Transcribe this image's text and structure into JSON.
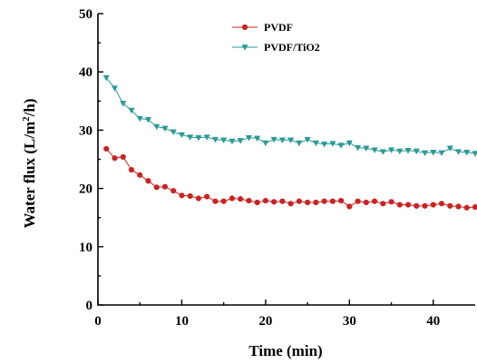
{
  "chart_data": {
    "type": "line",
    "title": "",
    "xlabel": "Time (min)",
    "ylabel_main": "Water flux (L/m",
    "ylabel_sup": "2",
    "ylabel_tail": "/h)",
    "xlim": [
      0,
      45
    ],
    "ylim": [
      0,
      50
    ],
    "xticks": [
      0,
      10,
      20,
      30,
      40
    ],
    "yticks": [
      0,
      10,
      20,
      30,
      40,
      50
    ],
    "grid": false,
    "legend_position": "top-center",
    "series": [
      {
        "name": "PVDF",
        "color": "#cc2222",
        "marker": "circle",
        "x": [
          1,
          2,
          3,
          4,
          5,
          6,
          7,
          8,
          9,
          10,
          11,
          12,
          13,
          14,
          15,
          16,
          17,
          18,
          19,
          20,
          21,
          22,
          23,
          24,
          25,
          26,
          27,
          28,
          29,
          30,
          31,
          32,
          33,
          34,
          35,
          36,
          37,
          38,
          39,
          40,
          41,
          42,
          43,
          44,
          45
        ],
        "y": [
          26.8,
          25.2,
          25.4,
          23.2,
          22.3,
          21.3,
          20.2,
          20.3,
          19.6,
          18.8,
          18.7,
          18.3,
          18.6,
          17.8,
          17.8,
          18.3,
          18.2,
          17.9,
          17.6,
          17.9,
          17.7,
          17.8,
          17.4,
          17.8,
          17.6,
          17.6,
          17.8,
          17.8,
          17.9,
          16.9,
          17.8,
          17.6,
          17.8,
          17.4,
          17.7,
          17.2,
          17.2,
          17.0,
          17.0,
          17.2,
          17.4,
          17.0,
          16.9,
          16.7,
          16.8
        ]
      },
      {
        "name": "PVDF/TiO2",
        "color": "#2a9a96",
        "marker": "triangle-down",
        "x": [
          1,
          2,
          3,
          4,
          5,
          6,
          7,
          8,
          9,
          10,
          11,
          12,
          13,
          14,
          15,
          16,
          17,
          18,
          19,
          20,
          21,
          22,
          23,
          24,
          25,
          26,
          27,
          28,
          29,
          30,
          31,
          32,
          33,
          34,
          35,
          36,
          37,
          38,
          39,
          40,
          41,
          42,
          43,
          44,
          45
        ],
        "y": [
          39.0,
          37.2,
          34.6,
          33.4,
          32.0,
          31.8,
          30.6,
          30.3,
          29.7,
          29.2,
          28.8,
          28.7,
          28.8,
          28.4,
          28.3,
          28.1,
          28.2,
          28.7,
          28.6,
          27.8,
          28.4,
          28.3,
          28.3,
          27.8,
          28.4,
          27.8,
          27.6,
          27.7,
          27.4,
          27.8,
          27.0,
          26.9,
          26.6,
          26.3,
          26.6,
          26.4,
          26.5,
          26.4,
          26.1,
          26.2,
          26.1,
          26.9,
          26.3,
          26.2,
          26.0
        ]
      }
    ]
  }
}
